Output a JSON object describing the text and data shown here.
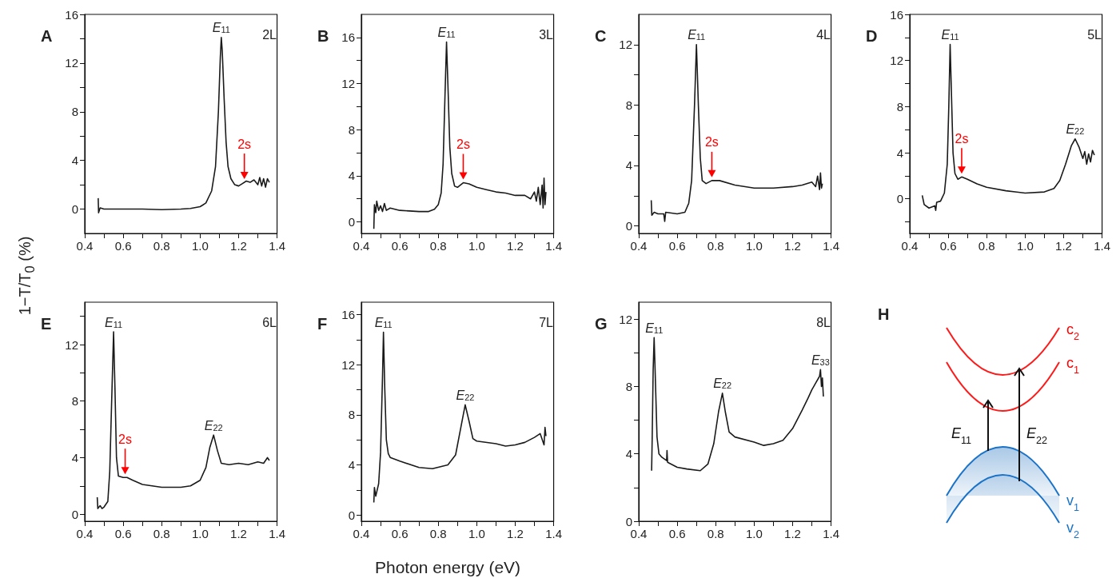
{
  "chart_data": [
    {
      "type": "line",
      "title": "A",
      "subtitle": "2L",
      "ylabel": "1−T/T$_{0}$ (%)",
      "xlim": [
        0.4,
        1.4
      ],
      "ylim": [
        -2,
        16
      ],
      "xticks": [
        0.4,
        {
          "value": 0.5,
          "label": null
        },
        0.6,
        {
          "value": 0.7,
          "label": null
        },
        0.8,
        {
          "value": 0.9,
          "label": null
        },
        {
          "value": 1,
          "label": "1.0"
        },
        {
          "value": 1.1,
          "label": null
        },
        1.2,
        {
          "value": 1.3,
          "label": null
        },
        1.4
      ],
      "yticks": [
        0,
        {
          "value": 2,
          "label": null
        },
        4,
        {
          "value": 6,
          "label": null
        },
        8,
        {
          "value": 10,
          "label": null
        },
        12,
        {
          "value": 14,
          "label": null
        },
        16
      ],
      "annotations": [
        {
          "text": "E$_{11}$",
          "x": 1.11,
          "y": 14.1
        },
        {
          "text": "2s",
          "x": 1.23,
          "y": 2.2
        }
      ],
      "series": [
        {
          "color": "#1a1a1a",
          "x": [
            0.47,
            0.472,
            0.48,
            0.5,
            0.6,
            0.7,
            0.8,
            0.9,
            0.95,
            1.0,
            1.03,
            1.06,
            1.08,
            1.095,
            1.105,
            1.11,
            1.115,
            1.125,
            1.135,
            1.145,
            1.16,
            1.18,
            1.2,
            1.22,
            1.24,
            1.26,
            1.28,
            1.3,
            1.31,
            1.32,
            1.33,
            1.34,
            1.35,
            1.36
          ],
          "values": [
            0.9,
            -0.3,
            0.1,
            0,
            0,
            0,
            -0.05,
            0,
            0.05,
            0.2,
            0.5,
            1.5,
            3.5,
            8,
            12.5,
            14.1,
            13,
            9,
            5.5,
            3.5,
            2.5,
            2.0,
            1.9,
            2.1,
            2.3,
            2.2,
            2.4,
            2.0,
            2.6,
            1.9,
            2.5,
            1.8,
            2.5,
            2.2
          ]
        }
      ]
    },
    {
      "type": "line",
      "title": "B",
      "subtitle": "3L",
      "xlim": [
        0.4,
        1.4
      ],
      "ylim": [
        -1,
        18
      ],
      "xticks": [
        0.4,
        {
          "value": 0.5,
          "label": null
        },
        0.6,
        {
          "value": 0.7,
          "label": null
        },
        0.8,
        {
          "value": 0.9,
          "label": null
        },
        {
          "value": 1,
          "label": "1.0"
        },
        {
          "value": 1.1,
          "label": null
        },
        1.2,
        {
          "value": 1.3,
          "label": null
        },
        1.4
      ],
      "yticks": [
        0,
        {
          "value": 2,
          "label": null
        },
        4,
        {
          "value": 6,
          "label": null
        },
        8,
        {
          "value": 10,
          "label": null
        },
        12,
        {
          "value": 14,
          "label": null
        },
        16
      ],
      "annotations": [
        {
          "text": "E$_{11}$",
          "x": 0.843,
          "y": 15.6
        },
        {
          "text": "2s",
          "x": 0.93,
          "y": 3.4
        }
      ],
      "series": [
        {
          "color": "#1a1a1a",
          "x": [
            0.465,
            0.468,
            0.475,
            0.48,
            0.49,
            0.5,
            0.51,
            0.52,
            0.53,
            0.55,
            0.6,
            0.7,
            0.75,
            0.78,
            0.8,
            0.815,
            0.825,
            0.835,
            0.843,
            0.85,
            0.86,
            0.87,
            0.885,
            0.9,
            0.93,
            0.96,
            1.0,
            1.05,
            1.1,
            1.15,
            1.2,
            1.25,
            1.28,
            1.3,
            1.31,
            1.32,
            1.33,
            1.34,
            1.345,
            1.35,
            1.355,
            1.36
          ],
          "values": [
            -0.6,
            1.5,
            0.8,
            1.8,
            1.0,
            1.4,
            0.9,
            1.6,
            1.0,
            1.2,
            1.0,
            0.9,
            0.9,
            1.1,
            1.5,
            2.5,
            5,
            11,
            15.6,
            12,
            6.5,
            4.2,
            3.1,
            3.0,
            3.4,
            3.3,
            3.0,
            2.8,
            2.6,
            2.5,
            2.3,
            2.3,
            2.0,
            2.6,
            1.8,
            3.0,
            1.5,
            3.2,
            1.2,
            3.8,
            1.5,
            2.6
          ]
        }
      ]
    },
    {
      "type": "line",
      "title": "C",
      "subtitle": "4L",
      "xlim": [
        0.4,
        1.4
      ],
      "ylim": [
        -0.5,
        14
      ],
      "xticks": [
        0.4,
        {
          "value": 0.5,
          "label": null
        },
        0.6,
        {
          "value": 0.7,
          "label": null
        },
        0.8,
        {
          "value": 0.9,
          "label": null
        },
        {
          "value": 1,
          "label": "1.0"
        },
        {
          "value": 1.1,
          "label": null
        },
        1.2,
        {
          "value": 1.3,
          "label": null
        },
        1.4
      ],
      "yticks": [
        0,
        {
          "value": 2,
          "label": null
        },
        4,
        {
          "value": 6,
          "label": null
        },
        8,
        {
          "value": 10,
          "label": null
        },
        12
      ],
      "annotations": [
        {
          "text": "E$_{11}$",
          "x": 0.7,
          "y": 12
        },
        {
          "text": "2s",
          "x": 0.78,
          "y": 3.0
        }
      ],
      "series": [
        {
          "color": "#1a1a1a",
          "x": [
            0.465,
            0.468,
            0.48,
            0.5,
            0.53,
            0.535,
            0.54,
            0.6,
            0.64,
            0.66,
            0.675,
            0.69,
            0.7,
            0.71,
            0.72,
            0.73,
            0.75,
            0.78,
            0.82,
            0.9,
            1.0,
            1.1,
            1.2,
            1.25,
            1.3,
            1.32,
            1.33,
            1.34,
            1.345,
            1.35,
            1.355
          ],
          "values": [
            1.7,
            0.7,
            0.9,
            0.8,
            0.8,
            0.3,
            0.9,
            0.8,
            0.9,
            1.5,
            3,
            8,
            12,
            8,
            4.5,
            3.0,
            2.8,
            3.0,
            3.0,
            2.7,
            2.5,
            2.5,
            2.6,
            2.7,
            2.9,
            2.6,
            3.3,
            2.4,
            3.5,
            2.5,
            2.8
          ]
        }
      ]
    },
    {
      "type": "line",
      "title": "D",
      "subtitle": "5L",
      "xlim": [
        0.4,
        1.4
      ],
      "ylim": [
        -3,
        16
      ],
      "xticks": [
        0.4,
        {
          "value": 0.5,
          "label": null
        },
        0.6,
        {
          "value": 0.7,
          "label": null
        },
        0.8,
        {
          "value": 0.9,
          "label": null
        },
        {
          "value": 1,
          "label": "1.0"
        },
        {
          "value": 1.1,
          "label": null
        },
        1.2,
        {
          "value": 1.3,
          "label": null
        },
        1.4
      ],
      "yticks": [
        {
          "value": -2,
          "label": null
        },
        0,
        {
          "value": 2,
          "label": null
        },
        4,
        {
          "value": 6,
          "label": null
        },
        8,
        {
          "value": 10,
          "label": null
        },
        12,
        {
          "value": 14,
          "label": null
        },
        16
      ],
      "annotations": [
        {
          "text": "E$_{11}$",
          "x": 0.61,
          "y": 13.4
        },
        {
          "text": "2s",
          "x": 0.67,
          "y": 1.9
        },
        {
          "text": "E$_{22}$",
          "x": 1.26,
          "y": 5.2
        }
      ],
      "series": [
        {
          "color": "#1a1a1a",
          "x": [
            0.465,
            0.475,
            0.5,
            0.53,
            0.535,
            0.54,
            0.56,
            0.58,
            0.595,
            0.603,
            0.61,
            0.617,
            0.625,
            0.635,
            0.65,
            0.67,
            0.7,
            0.75,
            0.8,
            0.9,
            1.0,
            1.1,
            1.15,
            1.18,
            1.21,
            1.24,
            1.26,
            1.28,
            1.3,
            1.31,
            1.32,
            1.33,
            1.34,
            1.35,
            1.36
          ],
          "values": [
            0.3,
            -0.5,
            -0.8,
            -0.6,
            -1.0,
            -0.3,
            -0.2,
            0.5,
            3,
            8,
            13.4,
            9,
            4,
            2.2,
            1.7,
            1.9,
            1.7,
            1.3,
            1.0,
            0.7,
            0.5,
            0.6,
            0.9,
            1.6,
            3,
            4.6,
            5.2,
            4.5,
            3.5,
            4.1,
            3.0,
            3.9,
            3.2,
            4.2,
            3.8
          ]
        }
      ]
    },
    {
      "type": "line",
      "title": "E",
      "subtitle": "6L",
      "xlim": [
        0.4,
        1.4
      ],
      "ylim": [
        -0.5,
        15
      ],
      "xticks": [
        0.4,
        {
          "value": 0.5,
          "label": null
        },
        0.6,
        {
          "value": 0.7,
          "label": null
        },
        0.8,
        {
          "value": 0.9,
          "label": null
        },
        {
          "value": 1,
          "label": "1.0"
        },
        {
          "value": 1.1,
          "label": null
        },
        1.2,
        {
          "value": 1.3,
          "label": null
        },
        1.4
      ],
      "yticks": [
        0,
        {
          "value": 2,
          "label": null
        },
        4,
        {
          "value": 6,
          "label": null
        },
        8,
        {
          "value": 10,
          "label": null
        },
        12,
        {
          "value": 14,
          "label": null
        }
      ],
      "annotations": [
        {
          "text": "E$_{11}$",
          "x": 0.55,
          "y": 12.9
        },
        {
          "text": "2s",
          "x": 0.61,
          "y": 2.6
        },
        {
          "text": "E$_{22}$",
          "x": 1.07,
          "y": 5.6
        }
      ],
      "series": [
        {
          "color": "#1a1a1a",
          "x": [
            0.465,
            0.468,
            0.48,
            0.49,
            0.5,
            0.52,
            0.53,
            0.54,
            0.55,
            0.557,
            0.565,
            0.575,
            0.6,
            0.62,
            0.65,
            0.7,
            0.8,
            0.9,
            0.95,
            1.0,
            1.03,
            1.05,
            1.07,
            1.09,
            1.11,
            1.15,
            1.2,
            1.25,
            1.3,
            1.33,
            1.35,
            1.36
          ],
          "values": [
            1.2,
            0.4,
            0.6,
            0.4,
            0.5,
            0.9,
            3,
            8,
            12.9,
            9,
            4,
            2.7,
            2.6,
            2.6,
            2.4,
            2.1,
            1.9,
            1.9,
            2.0,
            2.4,
            3.3,
            4.7,
            5.6,
            4.5,
            3.6,
            3.5,
            3.6,
            3.5,
            3.7,
            3.6,
            4.0,
            3.8
          ]
        }
      ]
    },
    {
      "type": "line",
      "title": "F",
      "subtitle": "7L",
      "xlabel": "Photon energy (eV)",
      "xlim": [
        0.4,
        1.4
      ],
      "ylim": [
        -0.5,
        17
      ],
      "xticks": [
        0.4,
        {
          "value": 0.5,
          "label": null
        },
        0.6,
        {
          "value": 0.7,
          "label": null
        },
        0.8,
        {
          "value": 0.9,
          "label": null
        },
        {
          "value": 1,
          "label": "1.0"
        },
        {
          "value": 1.1,
          "label": null
        },
        1.2,
        {
          "value": 1.3,
          "label": null
        },
        1.4
      ],
      "yticks": [
        0,
        {
          "value": 2,
          "label": null
        },
        4,
        {
          "value": 6,
          "label": null
        },
        8,
        {
          "value": 10,
          "label": null
        },
        12,
        {
          "value": 14,
          "label": null
        },
        16
      ],
      "annotations": [
        {
          "text": "E$_{11}$",
          "x": 0.515,
          "y": 14.6
        },
        {
          "text": "E$_{22}$",
          "x": 0.94,
          "y": 8.8
        }
      ],
      "series": [
        {
          "color": "#1a1a1a",
          "x": [
            0.465,
            0.468,
            0.475,
            0.49,
            0.5,
            0.51,
            0.515,
            0.522,
            0.53,
            0.54,
            0.55,
            0.6,
            0.7,
            0.77,
            0.85,
            0.89,
            0.92,
            0.94,
            0.96,
            0.98,
            1.0,
            1.1,
            1.15,
            1.2,
            1.25,
            1.3,
            1.33,
            1.35,
            1.355,
            1.36
          ],
          "values": [
            1.0,
            2.2,
            1.5,
            2.5,
            5,
            11,
            14.6,
            10,
            6,
            4.9,
            4.6,
            4.3,
            3.8,
            3.7,
            4.0,
            4.8,
            7.2,
            8.8,
            7.5,
            6.1,
            5.9,
            5.7,
            5.5,
            5.6,
            5.8,
            6.2,
            6.5,
            5.6,
            7.0,
            6.3
          ]
        }
      ]
    },
    {
      "type": "line",
      "title": "G",
      "subtitle": "8L",
      "xlim": [
        0.4,
        1.4
      ],
      "ylim": [
        0,
        13
      ],
      "xticks": [
        0.4,
        {
          "value": 0.5,
          "label": null
        },
        0.6,
        {
          "value": 0.7,
          "label": null
        },
        0.8,
        {
          "value": 0.9,
          "label": null
        },
        {
          "value": 1,
          "label": "1.0"
        },
        {
          "value": 1.1,
          "label": null
        },
        1.2,
        {
          "value": 1.3,
          "label": null
        },
        1.4
      ],
      "yticks": [
        0,
        {
          "value": 2,
          "label": null
        },
        4,
        {
          "value": 6,
          "label": null
        },
        8,
        {
          "value": 10,
          "label": null
        },
        12
      ],
      "annotations": [
        {
          "text": "E$_{11}$",
          "x": 0.48,
          "y": 10.9
        },
        {
          "text": "E$_{22}$",
          "x": 0.835,
          "y": 7.6
        },
        {
          "text": "E$_{33}$",
          "x": 1.345,
          "y": 9.0
        }
      ],
      "series": [
        {
          "color": "#1a1a1a",
          "x": [
            0.467,
            0.47,
            0.475,
            0.48,
            0.485,
            0.495,
            0.505,
            0.52,
            0.545,
            0.547,
            0.55,
            0.6,
            0.65,
            0.72,
            0.76,
            0.79,
            0.815,
            0.835,
            0.85,
            0.87,
            0.9,
            1.0,
            1.05,
            1.1,
            1.15,
            1.2,
            1.25,
            1.28,
            1.3,
            1.32,
            1.34,
            1.345,
            1.35,
            1.355,
            1.36
          ],
          "values": [
            3.0,
            5,
            9,
            10.9,
            9,
            5,
            4.0,
            3.8,
            3.6,
            4.2,
            3.5,
            3.2,
            3.1,
            3.0,
            3.4,
            4.6,
            6.5,
            7.6,
            6.5,
            5.3,
            5.0,
            4.7,
            4.5,
            4.6,
            4.8,
            5.5,
            6.6,
            7.3,
            7.8,
            8.2,
            8.6,
            9.0,
            8.0,
            8.5,
            7.4
          ]
        }
      ]
    },
    {
      "type": "other",
      "title": "H",
      "annotations": [
        "c$_{2}$",
        "c$_{1}$",
        "v$_{1}$",
        "v$_{2}$",
        "E$_{11}$",
        "E$_{22}$"
      ]
    }
  ]
}
